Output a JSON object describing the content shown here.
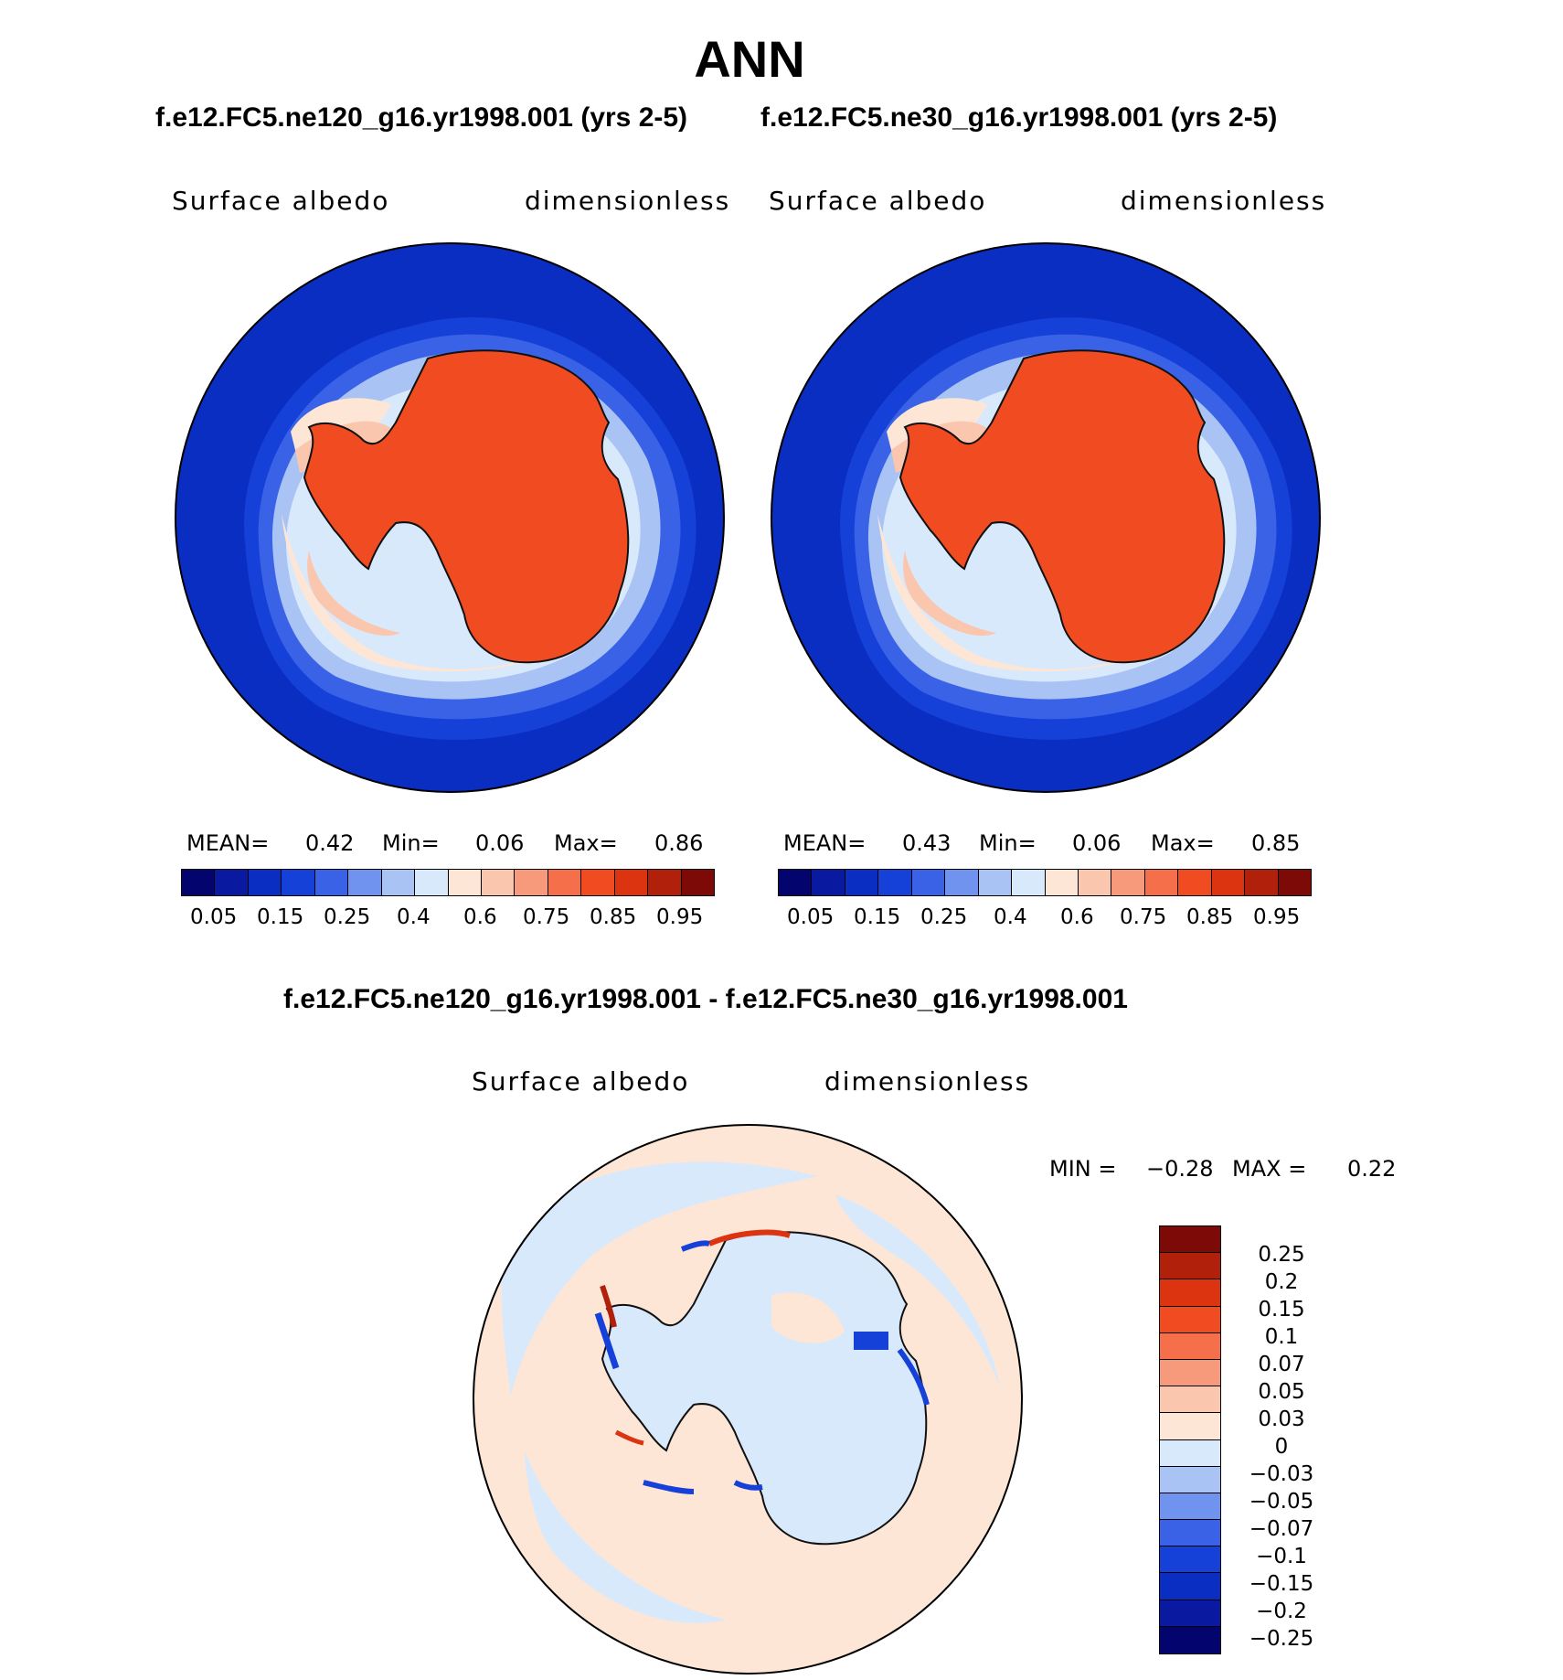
{
  "title": "ANN",
  "top_left": {
    "case": "f.e12.FC5.ne120_g16.yr1998.001 (yrs 2-5)",
    "left_label": "Surface albedo",
    "right_label": "dimensionless",
    "mean_label": "MEAN=",
    "mean": "0.42",
    "min_label": "Min=",
    "min": "0.06",
    "max_label": "Max=",
    "max": "0.86"
  },
  "top_right": {
    "case": "f.e12.FC5.ne30_g16.yr1998.001 (yrs 2-5)",
    "left_label": "Surface albedo",
    "right_label": "dimensionless",
    "mean_label": "MEAN=",
    "mean": "0.43",
    "min_label": "Min=",
    "min": "0.06",
    "max_label": "Max=",
    "max": "0.85"
  },
  "top_colorbar": {
    "colors": [
      "#04046e",
      "#0a1aa0",
      "#0b2ec2",
      "#1641d8",
      "#3a62e6",
      "#6f93ef",
      "#a9c3f5",
      "#d9e9fc",
      "#fde6d6",
      "#fbc6ae",
      "#f69a7b",
      "#f46f4a",
      "#f04b21",
      "#dc3310",
      "#b0200a",
      "#7d0a06"
    ],
    "ticks": [
      "0.05",
      "0.15",
      "0.25",
      "0.4",
      "0.6",
      "0.75",
      "0.85",
      "0.95"
    ]
  },
  "diff": {
    "case": "f.e12.FC5.ne120_g16.yr1998.001 - f.e12.FC5.ne30_g16.yr1998.001",
    "left_label": "Surface albedo",
    "right_label": "dimensionless",
    "min_label": "MIN =",
    "min": "−0.28",
    "max_label": "MAX =",
    "max": "0.22"
  },
  "diff_colorbar": {
    "colors": [
      "#7d0a06",
      "#b0200a",
      "#dc3310",
      "#f04b21",
      "#f46f4a",
      "#f69a7b",
      "#fbc6ae",
      "#fde6d6",
      "#d9e9fc",
      "#a9c3f5",
      "#6f93ef",
      "#3a62e6",
      "#1641d8",
      "#0b2ec2",
      "#0a1aa0",
      "#04046e"
    ],
    "ticks": [
      "0.25",
      "0.2",
      "0.15",
      "0.1",
      "0.07",
      "0.05",
      "0.03",
      "0",
      "−0.03",
      "−0.05",
      "−0.07",
      "−0.1",
      "−0.15",
      "−0.2",
      "−0.25"
    ]
  }
}
